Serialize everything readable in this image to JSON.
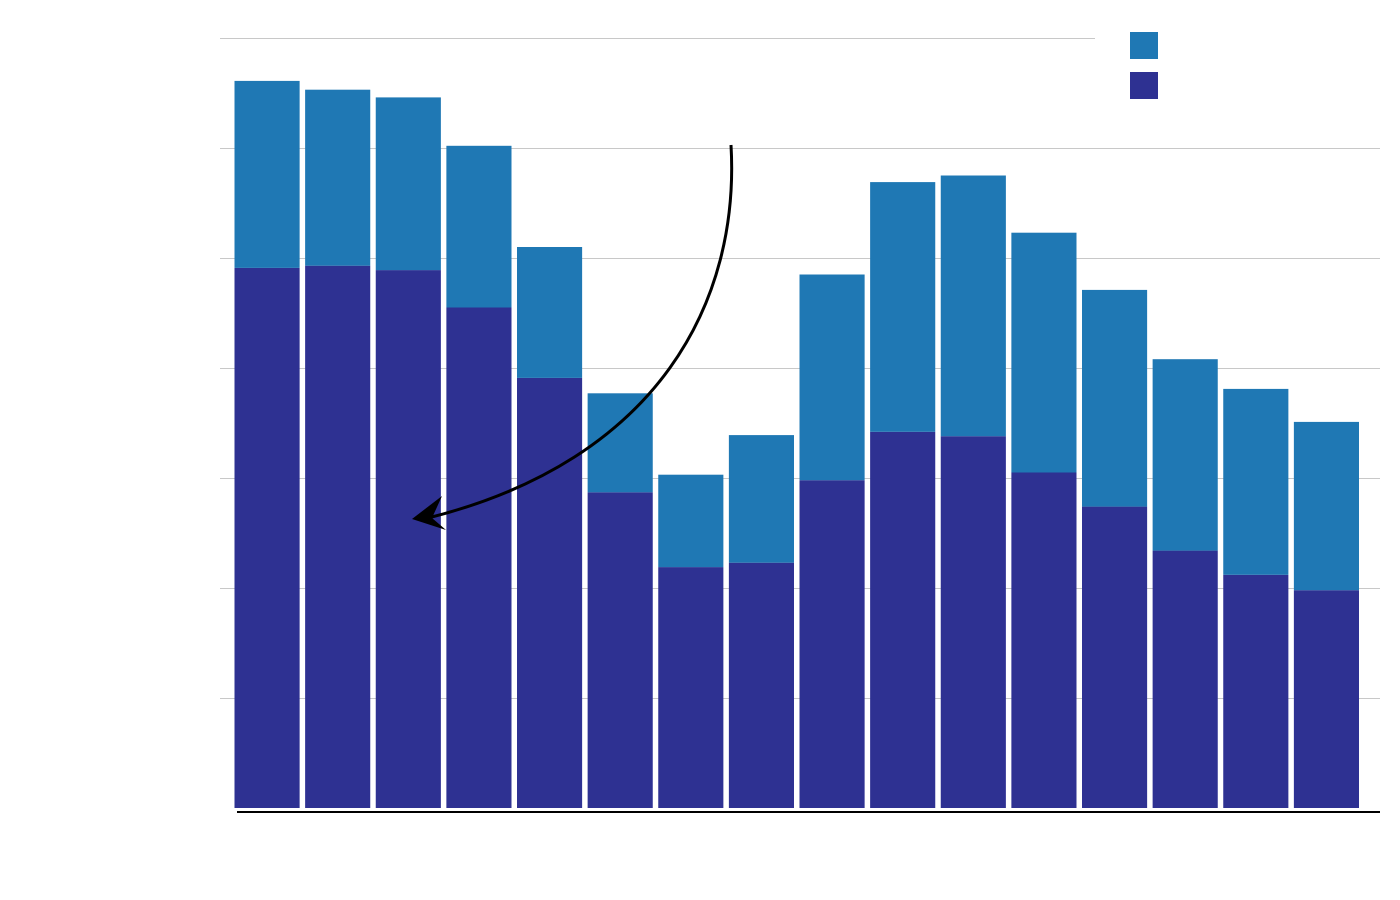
{
  "chart_data": {
    "type": "bar",
    "stacked": true,
    "title": "",
    "xlabel": "",
    "ylabel": "",
    "categories": [
      "",
      "",
      "",
      "",
      "",
      "",
      "",
      "",
      "",
      "",
      "",
      "",
      "",
      "",
      "",
      ""
    ],
    "series": [
      {
        "color": "#2e3192",
        "values": [
          4.91,
          4.93,
          4.89,
          4.55,
          3.91,
          2.87,
          2.19,
          2.23,
          2.98,
          3.42,
          3.38,
          3.05,
          2.74,
          2.34,
          2.12,
          1.98
        ]
      },
      {
        "color": "#1f78b4",
        "values": [
          1.7,
          1.6,
          1.57,
          1.47,
          1.19,
          0.9,
          0.84,
          1.16,
          1.87,
          2.27,
          2.37,
          2.18,
          1.97,
          1.74,
          1.69,
          1.53
        ]
      }
    ],
    "ylim": [
      0,
      7
    ],
    "yticks": [
      0,
      1,
      2,
      3,
      4,
      5,
      6,
      7
    ],
    "grid": true,
    "legend": "top-right",
    "annotation": {
      "type": "curved-arrow",
      "text": ""
    }
  }
}
